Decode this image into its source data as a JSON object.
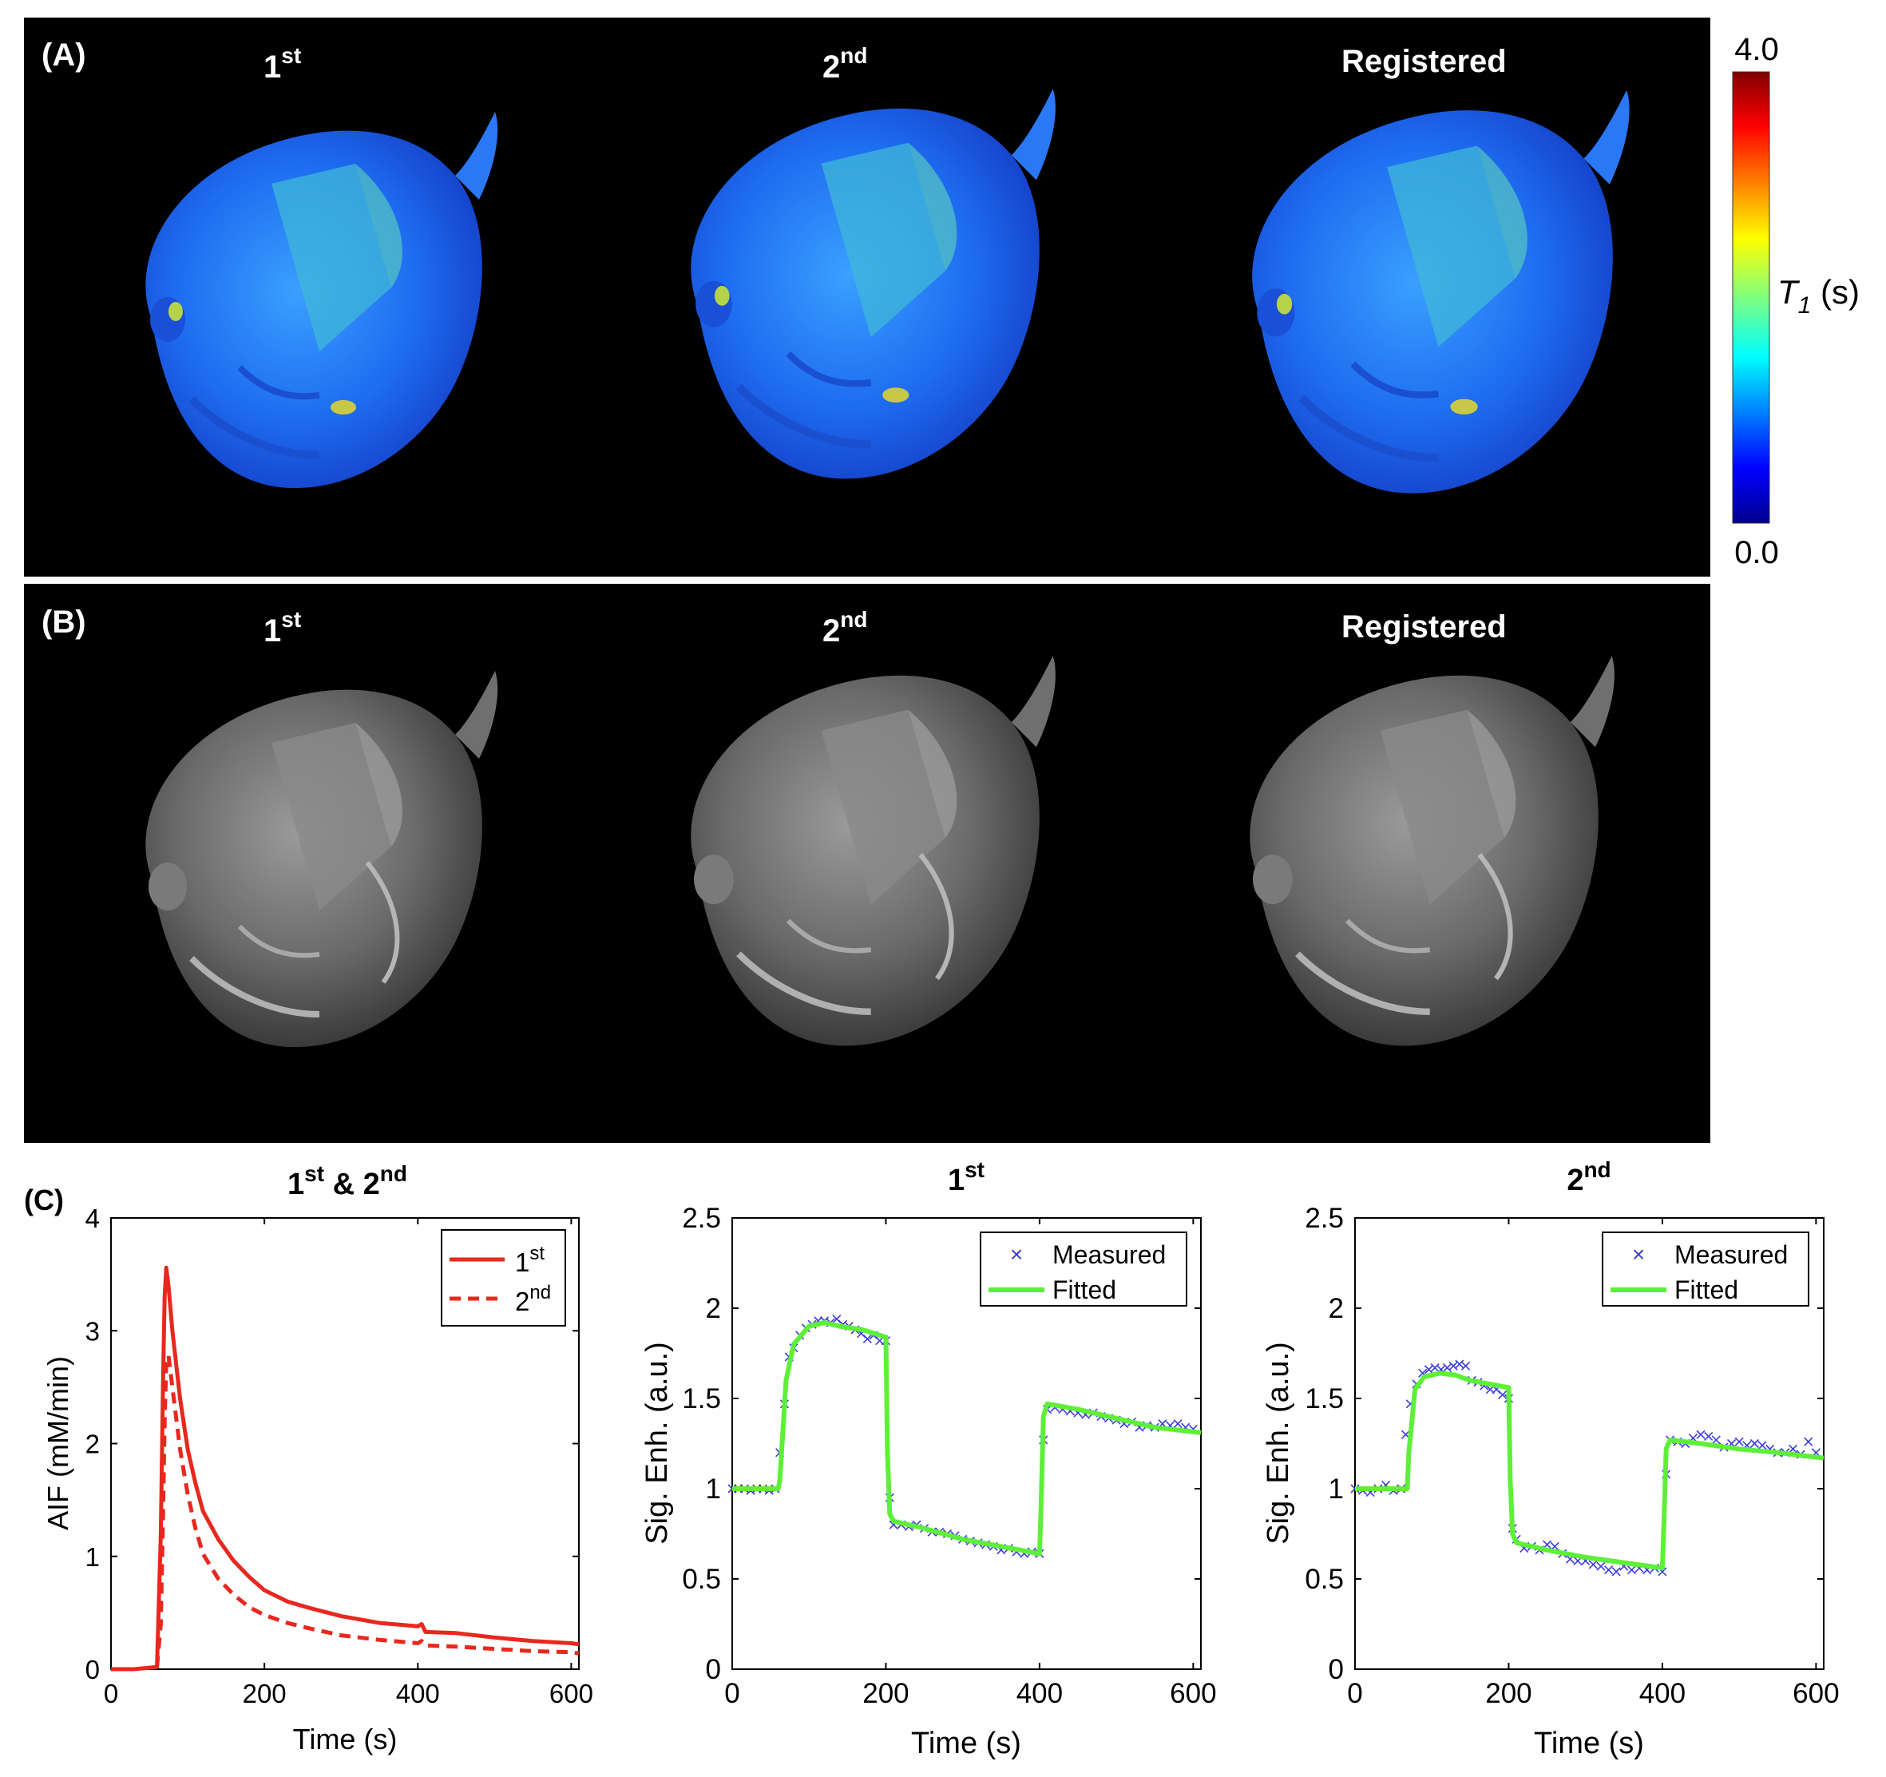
{
  "panels": {
    "a": {
      "label": "(A)",
      "titles": [
        "1",
        "st",
        "2",
        "nd",
        "Registered"
      ],
      "colorbar": {
        "max": "4.0",
        "min": "0.0",
        "label_main": "T",
        "label_sub": "1",
        "label_unit": " (s)"
      }
    },
    "b": {
      "label": "(B)",
      "titles": [
        "1",
        "st",
        "2",
        "nd",
        "Registered"
      ]
    },
    "c": {
      "label": "(C)"
    }
  },
  "colors": {
    "aif_line": "#e8281e",
    "fitted": "#5ef038",
    "measured": "#3b3bdc",
    "panel_bg": "#000000"
  },
  "chart_data": [
    {
      "type": "line",
      "title_parts": [
        "1",
        "st",
        " & 2",
        "nd"
      ],
      "xlabel": "Time (s)",
      "ylabel": "AIF (mM/min)",
      "xlim": [
        0,
        610
      ],
      "ylim": [
        0,
        4
      ],
      "xticks": [
        0,
        200,
        400,
        600
      ],
      "yticks": [
        0,
        1,
        2,
        3,
        4
      ],
      "legend": [
        "1",
        "st",
        "2",
        "nd"
      ],
      "legend_position": "top-right",
      "series": [
        {
          "name": "1st",
          "style": "solid",
          "x": [
            0,
            30,
            60,
            65,
            68,
            70,
            72,
            75,
            80,
            90,
            100,
            110,
            120,
            140,
            160,
            180,
            200,
            230,
            260,
            300,
            350,
            400,
            405,
            410,
            450,
            500,
            550,
            600,
            610
          ],
          "y": [
            0,
            0,
            0.02,
            1.2,
            2.6,
            3.3,
            3.56,
            3.4,
            3.0,
            2.4,
            1.95,
            1.65,
            1.4,
            1.15,
            0.96,
            0.82,
            0.7,
            0.6,
            0.54,
            0.47,
            0.41,
            0.38,
            0.4,
            0.33,
            0.32,
            0.28,
            0.25,
            0.23,
            0.22
          ]
        },
        {
          "name": "2nd",
          "style": "dashed",
          "x": [
            60,
            65,
            68,
            70,
            72,
            75,
            80,
            90,
            100,
            110,
            120,
            140,
            160,
            180,
            200,
            230,
            260,
            300,
            350,
            400,
            405,
            410,
            450,
            500,
            550,
            600,
            610
          ],
          "y": [
            0.02,
            0.4,
            1.4,
            2.2,
            2.7,
            2.78,
            2.5,
            1.95,
            1.55,
            1.25,
            1.02,
            0.8,
            0.66,
            0.55,
            0.48,
            0.41,
            0.36,
            0.3,
            0.26,
            0.23,
            0.25,
            0.21,
            0.2,
            0.18,
            0.16,
            0.15,
            0.14
          ]
        }
      ]
    },
    {
      "type": "scatter",
      "title_parts": [
        "1",
        "st"
      ],
      "xlabel": "Time (s)",
      "ylabel": "Sig. Enh. (a.u.)",
      "xlim": [
        0,
        610
      ],
      "ylim": [
        0,
        2.5
      ],
      "xticks": [
        0,
        200,
        400,
        600
      ],
      "yticks": [
        0,
        0.5,
        1,
        1.5,
        2,
        2.5
      ],
      "legend": [
        "Measured",
        "Fitted"
      ],
      "legend_position": "top-right",
      "series": [
        {
          "name": "Measured",
          "marker": "x",
          "x": [
            0,
            8,
            16,
            24,
            32,
            40,
            48,
            56,
            62,
            68,
            74,
            80,
            88,
            96,
            104,
            112,
            120,
            128,
            136,
            144,
            152,
            160,
            168,
            176,
            184,
            192,
            200,
            205,
            210,
            220,
            230,
            240,
            250,
            260,
            270,
            280,
            290,
            300,
            310,
            320,
            330,
            340,
            350,
            360,
            370,
            380,
            390,
            400,
            405,
            410,
            420,
            430,
            440,
            450,
            460,
            470,
            480,
            490,
            500,
            510,
            520,
            530,
            540,
            550,
            560,
            570,
            580,
            590,
            600
          ],
          "y": [
            1.0,
            1.0,
            1.0,
            0.99,
            1.0,
            1.0,
            0.99,
            1.0,
            1.2,
            1.47,
            1.73,
            1.78,
            1.85,
            1.89,
            1.91,
            1.93,
            1.93,
            1.92,
            1.94,
            1.91,
            1.9,
            1.88,
            1.86,
            1.83,
            1.85,
            1.82,
            1.82,
            0.95,
            0.8,
            0.8,
            0.79,
            0.8,
            0.78,
            0.76,
            0.76,
            0.75,
            0.74,
            0.72,
            0.71,
            0.7,
            0.69,
            0.68,
            0.66,
            0.67,
            0.65,
            0.64,
            0.65,
            0.64,
            1.27,
            1.44,
            1.45,
            1.44,
            1.43,
            1.42,
            1.41,
            1.42,
            1.4,
            1.39,
            1.38,
            1.36,
            1.37,
            1.34,
            1.35,
            1.34,
            1.36,
            1.35,
            1.36,
            1.34,
            1.33
          ]
        },
        {
          "name": "Fitted",
          "style": "solid",
          "x": [
            0,
            60,
            62,
            70,
            80,
            100,
            120,
            140,
            170,
            200,
            202,
            205,
            210,
            250,
            300,
            350,
            400,
            402,
            405,
            410,
            450,
            500,
            550,
            610
          ],
          "y": [
            1.0,
            1.0,
            1.05,
            1.6,
            1.8,
            1.9,
            1.92,
            1.9,
            1.88,
            1.84,
            1.2,
            0.86,
            0.82,
            0.78,
            0.72,
            0.68,
            0.64,
            0.9,
            1.4,
            1.47,
            1.44,
            1.39,
            1.34,
            1.31
          ]
        }
      ]
    },
    {
      "type": "scatter",
      "title_parts": [
        "2",
        "nd"
      ],
      "xlabel": "Time (s)",
      "ylabel": "Sig. Enh. (a.u.)",
      "xlim": [
        0,
        610
      ],
      "ylim": [
        0,
        2.5
      ],
      "xticks": [
        0,
        200,
        400,
        600
      ],
      "yticks": [
        0,
        0.5,
        1,
        1.5,
        2,
        2.5
      ],
      "legend": [
        "Measured",
        "Fitted"
      ],
      "legend_position": "top-right",
      "series": [
        {
          "name": "Measured",
          "marker": "x",
          "x": [
            0,
            10,
            20,
            30,
            40,
            50,
            60,
            66,
            72,
            80,
            88,
            96,
            104,
            112,
            120,
            128,
            136,
            144,
            152,
            160,
            168,
            176,
            184,
            192,
            200,
            205,
            210,
            220,
            230,
            240,
            250,
            260,
            270,
            280,
            290,
            300,
            310,
            320,
            330,
            340,
            350,
            360,
            370,
            380,
            390,
            400,
            405,
            410,
            420,
            430,
            440,
            450,
            460,
            470,
            480,
            490,
            500,
            510,
            520,
            530,
            540,
            550,
            560,
            570,
            580,
            590,
            600
          ],
          "y": [
            1.0,
            0.99,
            0.98,
            1.0,
            1.02,
            0.99,
            1.0,
            1.3,
            1.47,
            1.58,
            1.64,
            1.66,
            1.67,
            1.66,
            1.67,
            1.68,
            1.69,
            1.68,
            1.6,
            1.59,
            1.57,
            1.55,
            1.55,
            1.52,
            1.5,
            0.78,
            0.72,
            0.67,
            0.68,
            0.66,
            0.69,
            0.68,
            0.64,
            0.61,
            0.6,
            0.6,
            0.58,
            0.57,
            0.55,
            0.54,
            0.57,
            0.55,
            0.56,
            0.55,
            0.56,
            0.54,
            1.08,
            1.27,
            1.26,
            1.25,
            1.28,
            1.3,
            1.29,
            1.27,
            1.23,
            1.25,
            1.26,
            1.24,
            1.25,
            1.24,
            1.22,
            1.2,
            1.2,
            1.22,
            1.19,
            1.26,
            1.2
          ]
        },
        {
          "name": "Fitted",
          "style": "solid",
          "x": [
            0,
            68,
            70,
            78,
            90,
            110,
            130,
            150,
            175,
            200,
            202,
            205,
            210,
            250,
            300,
            350,
            400,
            402,
            405,
            410,
            450,
            500,
            550,
            610
          ],
          "y": [
            1.0,
            1.0,
            1.2,
            1.55,
            1.62,
            1.64,
            1.63,
            1.6,
            1.58,
            1.56,
            1.05,
            0.75,
            0.7,
            0.66,
            0.62,
            0.59,
            0.56,
            0.8,
            1.22,
            1.27,
            1.25,
            1.22,
            1.2,
            1.17
          ]
        }
      ]
    }
  ]
}
